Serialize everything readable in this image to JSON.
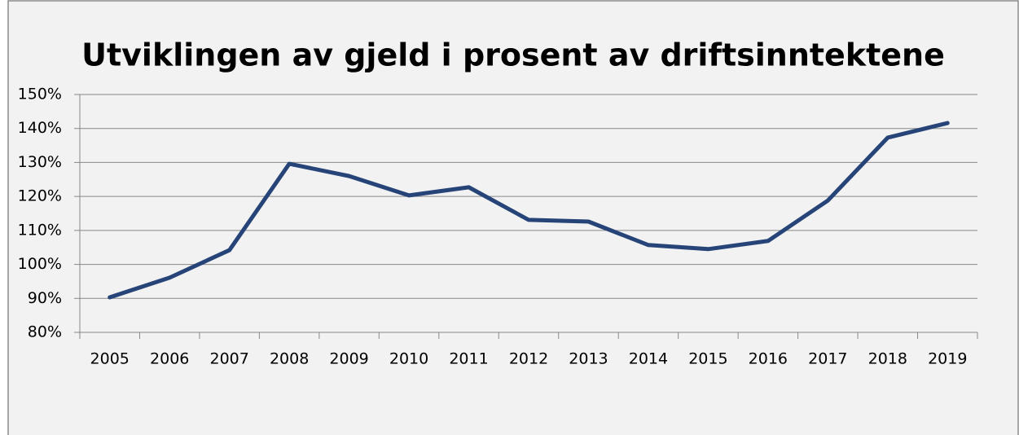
{
  "chart_data": {
    "type": "line",
    "title": "Utviklingen av gjeld i prosent av driftsinntektene",
    "categories": [
      "2005",
      "2006",
      "2007",
      "2008",
      "2009",
      "2010",
      "2011",
      "2012",
      "2013",
      "2014",
      "2015",
      "2016",
      "2017",
      "2018",
      "2019"
    ],
    "series": [
      {
        "color": "#264478",
        "values": [
          90.3,
          96.1,
          104.2,
          129.6,
          126,
          120.3,
          122.7,
          113.1,
          112.6,
          105.7,
          104.5,
          106.9,
          118.8,
          137.3,
          141.6
        ]
      }
    ],
    "ylim": [
      80,
      150
    ],
    "yticks": [
      {
        "value": 80,
        "label": "80%"
      },
      {
        "value": 90,
        "label": "90%"
      },
      {
        "value": 100,
        "label": "100%"
      },
      {
        "value": 110,
        "label": "110%"
      },
      {
        "value": 120,
        "label": "120%"
      },
      {
        "value": 130,
        "label": "130%"
      },
      {
        "value": 140,
        "label": "140%"
      },
      {
        "value": 150,
        "label": "150%"
      }
    ],
    "grid": true
  }
}
